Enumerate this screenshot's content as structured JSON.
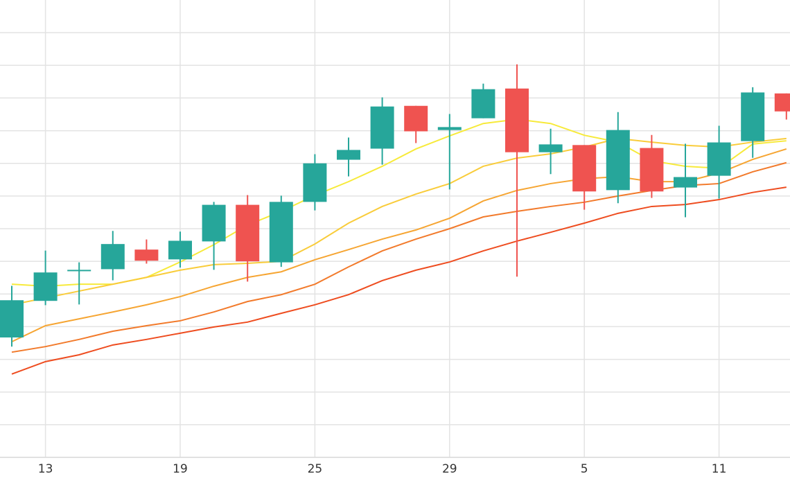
{
  "chart_data": {
    "type": "candlestick",
    "categories": [
      null,
      "13",
      null,
      null,
      null,
      "19",
      null,
      null,
      null,
      "25",
      null,
      null,
      null,
      "29",
      null,
      null,
      null,
      "5",
      null,
      null,
      null,
      "11",
      null,
      null
    ],
    "open": [
      3.67,
      4.79,
      5.7,
      5.76,
      6.36,
      6.06,
      6.61,
      7.73,
      5.97,
      7.82,
      9.11,
      9.45,
      10.76,
      10.02,
      10.38,
      11.29,
      9.34,
      9.56,
      8.18,
      9.47,
      8.26,
      8.62,
      9.68,
      11.14
    ],
    "high": [
      5.25,
      6.33,
      5.97,
      6.93,
      6.67,
      6.91,
      7.82,
      8.03,
      8.01,
      9.28,
      9.79,
      11.02,
      10.76,
      10.51,
      11.44,
      12.03,
      10.06,
      9.56,
      10.57,
      9.87,
      9.6,
      10.15,
      11.33,
      11.14
    ],
    "low": [
      3.39,
      4.66,
      4.68,
      5.42,
      5.93,
      5.81,
      5.74,
      5.38,
      5.83,
      7.56,
      8.6,
      8.96,
      9.62,
      8.2,
      10.38,
      5.53,
      8.67,
      7.58,
      7.78,
      7.94,
      7.35,
      7.92,
      9.17,
      10.34
    ],
    "close": [
      4.81,
      5.66,
      5.74,
      6.53,
      6.02,
      6.63,
      7.73,
      6.0,
      7.82,
      9.0,
      9.41,
      10.74,
      9.98,
      10.11,
      11.27,
      9.34,
      9.58,
      8.14,
      10.02,
      8.14,
      8.58,
      9.64,
      11.17,
      10.59
    ],
    "up_color": "#26a69a",
    "down_color": "#ef5350",
    "series": [
      {
        "color": "#f7ea3a",
        "values": [
          5.3,
          5.24,
          5.3,
          5.3,
          5.51,
          5.98,
          6.51,
          7.11,
          7.53,
          8.02,
          8.44,
          8.91,
          9.44,
          9.84,
          10.22,
          10.35,
          10.22,
          9.86,
          9.65,
          9.08,
          8.91,
          8.85,
          9.59,
          9.69
        ]
      },
      {
        "color": "#f9cc3a",
        "values": [
          4.67,
          4.88,
          5.09,
          5.3,
          5.51,
          5.73,
          5.9,
          5.94,
          6.0,
          6.53,
          7.17,
          7.68,
          8.06,
          8.38,
          8.91,
          9.16,
          9.29,
          9.5,
          9.76,
          9.65,
          9.55,
          9.5,
          9.65,
          9.76
        ]
      },
      {
        "color": "#f6a532",
        "values": [
          3.54,
          4.03,
          4.24,
          4.45,
          4.67,
          4.92,
          5.24,
          5.51,
          5.68,
          6.05,
          6.36,
          6.68,
          6.96,
          7.32,
          7.85,
          8.17,
          8.38,
          8.53,
          8.59,
          8.44,
          8.44,
          8.7,
          9.12,
          9.44
        ]
      },
      {
        "color": "#f27a2b",
        "values": [
          3.22,
          3.39,
          3.61,
          3.86,
          4.03,
          4.18,
          4.45,
          4.77,
          4.98,
          5.3,
          5.83,
          6.32,
          6.68,
          7.0,
          7.36,
          7.53,
          7.68,
          7.81,
          8.0,
          8.17,
          8.32,
          8.38,
          8.74,
          9.02
        ]
      },
      {
        "color": "#ee4c1f",
        "values": [
          2.55,
          2.93,
          3.14,
          3.44,
          3.61,
          3.8,
          3.99,
          4.14,
          4.41,
          4.67,
          4.98,
          5.41,
          5.73,
          5.98,
          6.32,
          6.62,
          6.89,
          7.17,
          7.47,
          7.68,
          7.74,
          7.89,
          8.11,
          8.27
        ]
      }
    ],
    "ylim": [
      0,
      14
    ],
    "yticks": [
      0,
      1,
      2,
      3,
      4,
      5,
      6,
      7,
      8,
      9,
      10,
      11,
      12,
      13
    ],
    "grid": true
  }
}
